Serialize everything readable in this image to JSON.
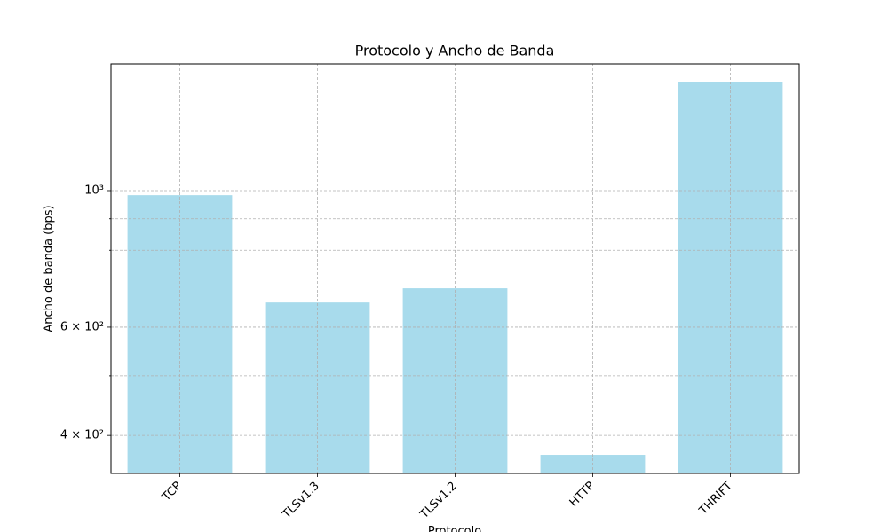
{
  "chart_data": {
    "type": "bar",
    "title": "Protocolo y Ancho de Banda",
    "x_label": "Protocolo",
    "y_label": "Ancho de banda (bps)",
    "categories": [
      "TCP",
      "TLSv1.3",
      "TLSv1.2",
      "HTTP",
      "THRIFT"
    ],
    "values": [
      983,
      658,
      694,
      372,
      1499
    ],
    "color": "#a8dbec",
    "y_scale": "log",
    "ylim": [
      347,
      1607
    ],
    "yticks": [
      {
        "value": 400,
        "label": "4 × 10²"
      },
      {
        "value": 600,
        "label": "6 × 10²"
      },
      {
        "value": 1000,
        "label": "10³"
      }
    ],
    "yminor_ticks": [
      500,
      700,
      800,
      900
    ],
    "grid": true
  }
}
